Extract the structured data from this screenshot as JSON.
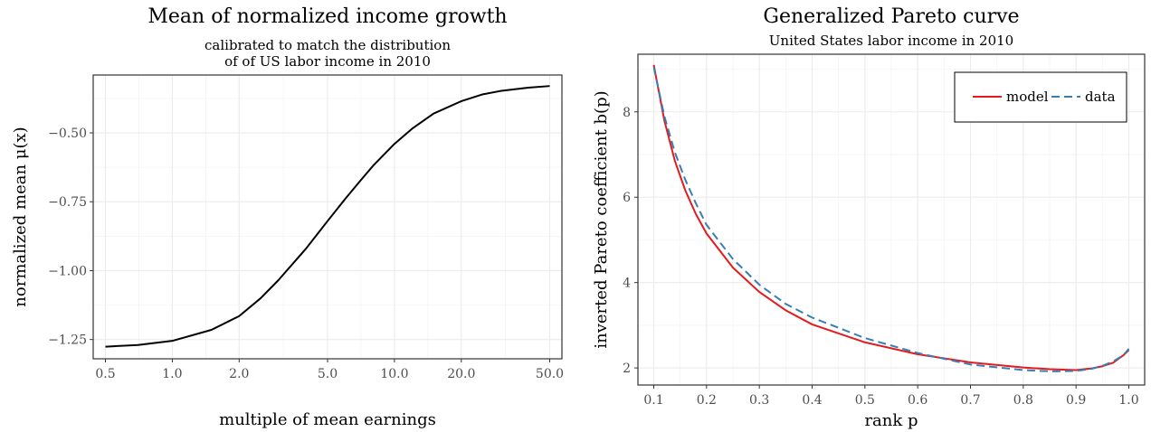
{
  "chart_data": [
    {
      "type": "line",
      "title": "Mean of normalized income growth",
      "subtitle_lines": [
        "calibrated to match the distribution",
        "of of US labor income in 2010"
      ],
      "xlabel": "multiple of mean earnings",
      "ylabel": "normalized mean μ(x)",
      "x_scale": "log",
      "xlim": [
        0.5,
        50
      ],
      "ylim": [
        -1.32,
        -0.29
      ],
      "x_ticks": [
        0.5,
        1.0,
        2.0,
        5.0,
        10.0,
        20.0,
        50.0
      ],
      "x_tick_labels": [
        "0.5",
        "1.0",
        "2.0",
        "5.0",
        "10.0",
        "20.0",
        "50.0"
      ],
      "y_ticks": [
        -1.25,
        -1.0,
        -0.75,
        -0.5
      ],
      "y_tick_labels": [
        "−1.25",
        "−1.00",
        "−0.75",
        "−0.50"
      ],
      "grid": true,
      "series": [
        {
          "color": "#000000",
          "x": [
            0.5,
            0.7,
            1.0,
            1.5,
            2.0,
            2.5,
            3.0,
            4.0,
            5.0,
            6.0,
            7.0,
            8.0,
            10.0,
            12.0,
            15.0,
            20.0,
            25.0,
            30.0,
            40.0,
            50.0
          ],
          "y": [
            -1.276,
            -1.27,
            -1.255,
            -1.215,
            -1.165,
            -1.1,
            -1.035,
            -0.92,
            -0.82,
            -0.74,
            -0.675,
            -0.62,
            -0.54,
            -0.485,
            -0.43,
            -0.385,
            -0.36,
            -0.348,
            -0.336,
            -0.33
          ]
        }
      ]
    },
    {
      "type": "line",
      "title": "Generalized Pareto curve",
      "subtitle_lines": [
        "United States labor income in 2010"
      ],
      "xlabel": "rank p",
      "ylabel": "inverted Pareto coefficient b(p)",
      "xlim": [
        0.07,
        1.03
      ],
      "ylim": [
        1.6,
        9.35
      ],
      "x_ticks": [
        0.1,
        0.2,
        0.3,
        0.4,
        0.5,
        0.6,
        0.7,
        0.8,
        0.9,
        1.0
      ],
      "x_tick_labels": [
        "0.1",
        "0.2",
        "0.3",
        "0.4",
        "0.5",
        "0.6",
        "0.7",
        "0.8",
        "0.9",
        "1.0"
      ],
      "y_ticks": [
        2,
        4,
        6,
        8
      ],
      "y_tick_labels": [
        "2",
        "4",
        "6",
        "8"
      ],
      "grid": true,
      "legend": {
        "placement": "top-right"
      },
      "series": [
        {
          "name": "model",
          "color": "#e41a1c",
          "dash": "solid",
          "x": [
            0.1,
            0.12,
            0.14,
            0.16,
            0.18,
            0.2,
            0.25,
            0.3,
            0.35,
            0.4,
            0.5,
            0.6,
            0.7,
            0.8,
            0.85,
            0.9,
            0.93,
            0.95,
            0.97,
            0.99,
            1.0
          ],
          "y": [
            9.1,
            7.8,
            6.85,
            6.15,
            5.6,
            5.15,
            4.35,
            3.78,
            3.35,
            3.02,
            2.6,
            2.32,
            2.13,
            2.01,
            1.97,
            1.95,
            1.99,
            2.04,
            2.12,
            2.3,
            2.42
          ]
        },
        {
          "name": "data",
          "color": "#377eb8",
          "dash": "dashed",
          "x": [
            0.1,
            0.12,
            0.14,
            0.16,
            0.18,
            0.2,
            0.25,
            0.3,
            0.35,
            0.4,
            0.5,
            0.6,
            0.7,
            0.8,
            0.85,
            0.9,
            0.93,
            0.95,
            0.97,
            0.99,
            1.0
          ],
          "y": [
            9.05,
            7.9,
            7.05,
            6.4,
            5.85,
            5.35,
            4.55,
            3.95,
            3.5,
            3.18,
            2.7,
            2.35,
            2.08,
            1.95,
            1.92,
            1.93,
            1.98,
            2.05,
            2.15,
            2.3,
            2.45
          ]
        }
      ]
    }
  ]
}
